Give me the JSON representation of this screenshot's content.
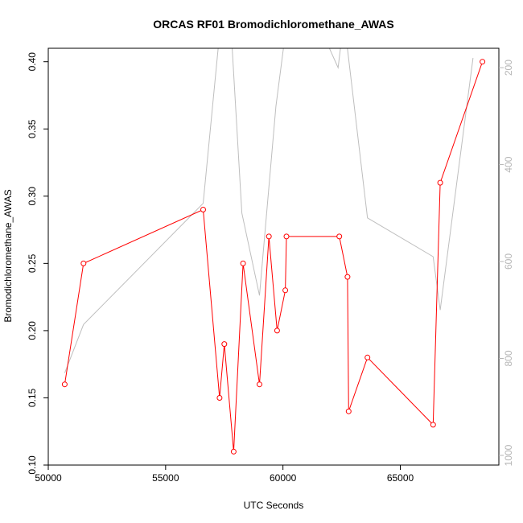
{
  "chart_data": {
    "type": "line",
    "title": "ORCAS RF01 Bromodichloromethane_AWAS",
    "xlabel": "UTC Seconds",
    "ylabel": "Bromodichloromethane_AWAS",
    "xlim": [
      50000,
      69200
    ],
    "ylim": [
      0.1,
      0.41
    ],
    "x_ticks": [
      50000,
      55000,
      60000,
      65000
    ],
    "y_ticks": [
      0.1,
      0.15,
      0.2,
      0.25,
      0.3,
      0.35,
      0.4
    ],
    "y_right_ticks": [
      200,
      400,
      600,
      800,
      1000
    ],
    "y_right_lim": [
      1020,
      160
    ],
    "grid": false,
    "series": [
      {
        "color": "#ff0000",
        "marker": "circle",
        "x": [
          50700,
          51500,
          56600,
          57300,
          57500,
          57900,
          58300,
          59000,
          59400,
          59750,
          60100,
          60150,
          62400,
          62750,
          62800,
          63600,
          66400,
          66700,
          68500
        ],
        "values": [
          0.16,
          0.25,
          0.29,
          0.15,
          0.19,
          0.11,
          0.25,
          0.16,
          0.27,
          0.2,
          0.23,
          0.27,
          0.27,
          0.24,
          0.14,
          0.18,
          0.13,
          0.31,
          0.4
        ]
      },
      {
        "color": "#bebebe",
        "axis": "right",
        "x": [
          50700,
          51500,
          56600,
          57300,
          57800,
          58250,
          59000,
          59700,
          60100,
          61700,
          62350,
          62600,
          63600,
          66400,
          66700,
          68100
        ],
        "values": [
          830,
          730,
          480,
          130,
          130,
          500,
          670,
          280,
          130,
          130,
          200,
          100,
          510,
          590,
          700,
          180
        ]
      }
    ]
  }
}
